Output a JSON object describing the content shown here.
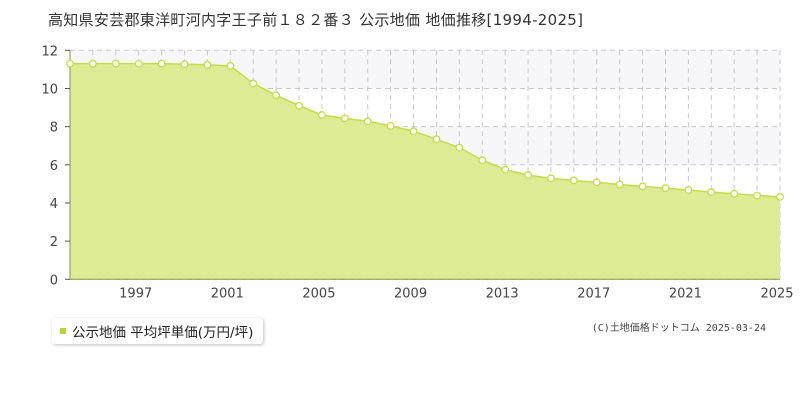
{
  "chart_data": {
    "type": "area",
    "title": "高知県安芸郡東洋町河内字王子前１８２番３ 公示地価 地価推移[1994-2025]",
    "x": [
      1994,
      1995,
      1996,
      1997,
      1998,
      1999,
      2000,
      2001,
      2002,
      2003,
      2004,
      2005,
      2006,
      2007,
      2008,
      2009,
      2010,
      2011,
      2012,
      2013,
      2014,
      2015,
      2016,
      2017,
      2018,
      2019,
      2020,
      2021,
      2022,
      2023,
      2024,
      2025
    ],
    "series": [
      {
        "name": "公示地価 平均坪単価(万円/坪)",
        "values": [
          11.3,
          11.3,
          11.3,
          11.3,
          11.3,
          11.27,
          11.24,
          11.18,
          10.26,
          9.65,
          9.1,
          8.61,
          8.43,
          8.28,
          8.04,
          7.76,
          7.34,
          6.9,
          6.24,
          5.75,
          5.46,
          5.29,
          5.18,
          5.08,
          4.97,
          4.87,
          4.78,
          4.68,
          4.57,
          4.48,
          4.39,
          4.32
        ]
      }
    ],
    "xticks": [
      1997,
      2001,
      2005,
      2009,
      2013,
      2017,
      2021,
      2025
    ],
    "yticks": [
      0,
      2,
      4,
      6,
      8,
      10,
      12
    ],
    "ylim": [
      0,
      12
    ],
    "xlim": [
      1994,
      2025
    ],
    "grid": true,
    "legend": "bottom-left",
    "colors": {
      "fill": "#dceb94",
      "line": "#c3dd4a",
      "marker_fill": "#ffffff",
      "grid": "#c8c8c8",
      "band": "#f7f7f9"
    }
  },
  "credit": "(C)土地価格ドットコム 2025-03-24"
}
